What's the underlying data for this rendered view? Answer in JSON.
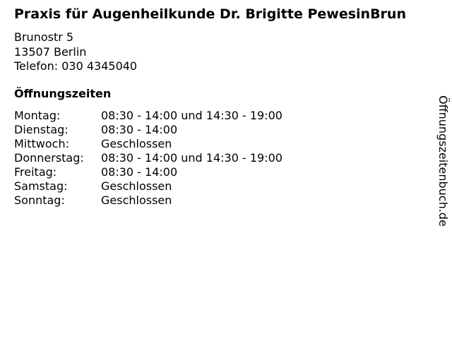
{
  "title": "Praxis für Augenheilkunde Dr. Brigitte PewesinBrun",
  "address": {
    "street": "Brunostr 5",
    "city": "13507 Berlin",
    "phone": "Telefon: 030 4345040"
  },
  "hours_heading": "Öffnungszeiten",
  "hours": [
    {
      "day": "Montag:",
      "time": "08:30 - 14:00 und 14:30 - 19:00"
    },
    {
      "day": "Dienstag:",
      "time": "08:30 - 14:00"
    },
    {
      "day": "Mittwoch:",
      "time": "Geschlossen"
    },
    {
      "day": "Donnerstag:",
      "time": "08:30 - 14:00 und 14:30 - 19:00"
    },
    {
      "day": "Freitag:",
      "time": "08:30 - 14:00"
    },
    {
      "day": "Samstag:",
      "time": "Geschlossen"
    },
    {
      "day": "Sonntag:",
      "time": "Geschlossen"
    }
  ],
  "watermark": "Öffnungszeitenbuch.de"
}
